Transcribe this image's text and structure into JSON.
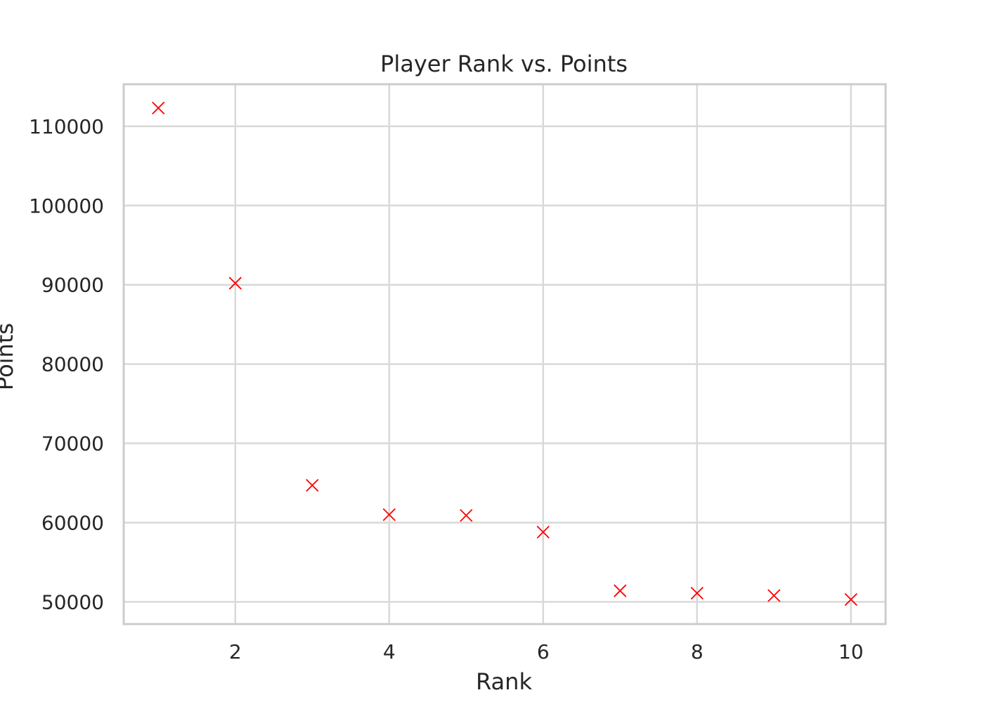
{
  "chart_data": {
    "type": "scatter",
    "title": "Player Rank vs. Points",
    "xlabel": "Rank",
    "ylabel": "Points",
    "x": [
      1,
      2,
      3,
      4,
      5,
      6,
      7,
      8,
      9,
      10
    ],
    "y": [
      112300,
      90200,
      64700,
      61000,
      60900,
      58800,
      51400,
      51100,
      50800,
      50300
    ],
    "xlim": [
      0.55,
      10.45
    ],
    "ylim": [
      47200,
      115300
    ],
    "xticks": [
      2,
      4,
      6,
      8,
      10
    ],
    "yticks": [
      50000,
      60000,
      70000,
      80000,
      90000,
      100000,
      110000
    ],
    "marker": "x",
    "marker_color": "#ff0000",
    "grid": true
  }
}
